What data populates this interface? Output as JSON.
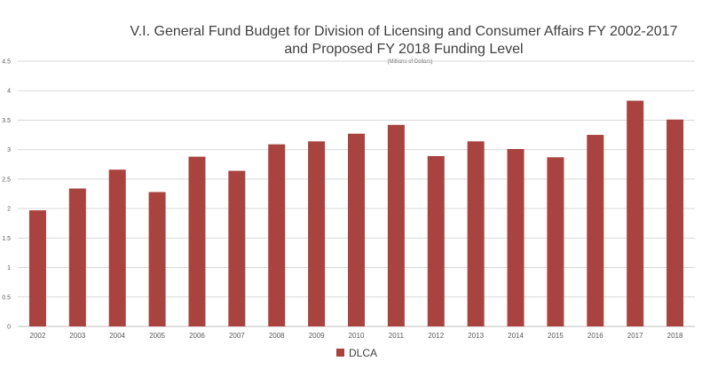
{
  "chart_data": {
    "type": "bar",
    "title_lines": [
      "V.I. General Fund Budget for Division of Licensing and Consumer Affairs FY 2002-2017",
      "and Proposed FY 2018 Funding Level"
    ],
    "subtitle": "(Millions of Dollars)",
    "xlabel": "",
    "ylabel": "",
    "categories": [
      "2002",
      "2003",
      "2004",
      "2005",
      "2006",
      "2007",
      "2008",
      "2009",
      "2010",
      "2011",
      "2012",
      "2013",
      "2014",
      "2015",
      "2016",
      "2017",
      "2018"
    ],
    "series": [
      {
        "name": "DLCA",
        "color": "#a9433f",
        "values": [
          1.97,
          2.34,
          2.66,
          2.28,
          2.88,
          2.64,
          3.09,
          3.14,
          3.27,
          3.42,
          2.89,
          3.14,
          3.01,
          2.87,
          3.25,
          3.83,
          3.51
        ]
      }
    ],
    "ylim": [
      0,
      4.5
    ],
    "yticks": [
      "0",
      "0.5",
      "1",
      "1.5",
      "2",
      "2.5",
      "3",
      "3.5",
      "4",
      "4.5"
    ],
    "grid": true,
    "legend": "bottom-center"
  }
}
